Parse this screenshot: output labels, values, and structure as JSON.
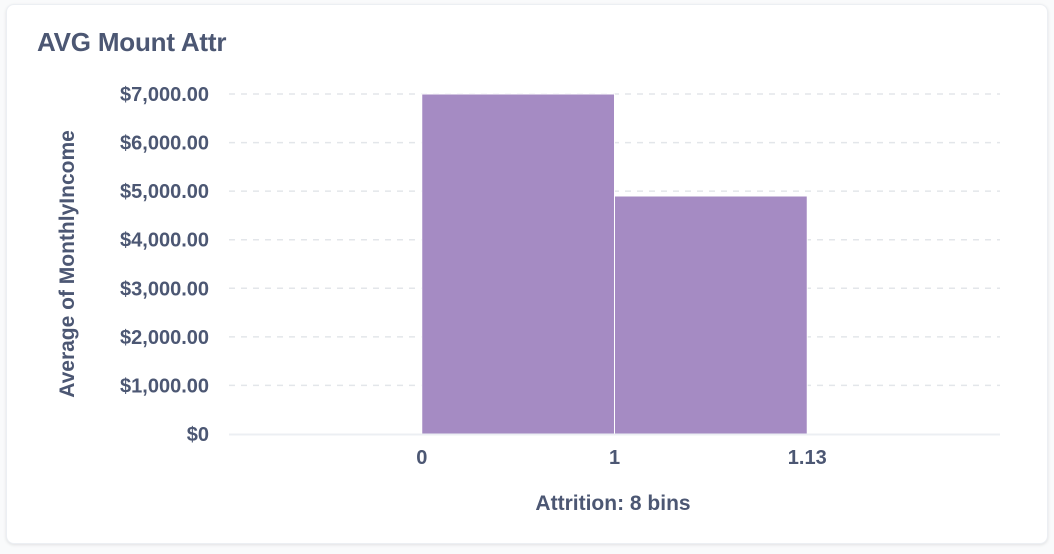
{
  "card": {
    "title": "AVG Mount Attr"
  },
  "colors": {
    "bar": "#a58bc3",
    "grid": "#e3e6ea",
    "axis": "#eceff3",
    "text": "#4c5773"
  },
  "chart_data": {
    "type": "bar",
    "title": "AVG Mount Attr",
    "xlabel": "Attrition: 8 bins",
    "ylabel": "Average of MonthlyIncome",
    "ylim": [
      0,
      7000
    ],
    "xlim": [
      -1,
      3
    ],
    "grid": true,
    "bars": [
      {
        "x0": 0,
        "x1": 1,
        "value": 7000
      },
      {
        "x0": 1,
        "x1": 2,
        "value": 4900
      }
    ],
    "x_ticks": [
      {
        "pos": 0,
        "label": "0"
      },
      {
        "pos": 1,
        "label": "1"
      },
      {
        "pos": 2,
        "label": "1.13"
      }
    ],
    "y_ticks": [
      {
        "value": 0,
        "label": "$0"
      },
      {
        "value": 1000,
        "label": "$1,000.00"
      },
      {
        "value": 2000,
        "label": "$2,000.00"
      },
      {
        "value": 3000,
        "label": "$3,000.00"
      },
      {
        "value": 4000,
        "label": "$4,000.00"
      },
      {
        "value": 5000,
        "label": "$5,000.00"
      },
      {
        "value": 6000,
        "label": "$6,000.00"
      },
      {
        "value": 7000,
        "label": "$7,000.00"
      }
    ]
  }
}
